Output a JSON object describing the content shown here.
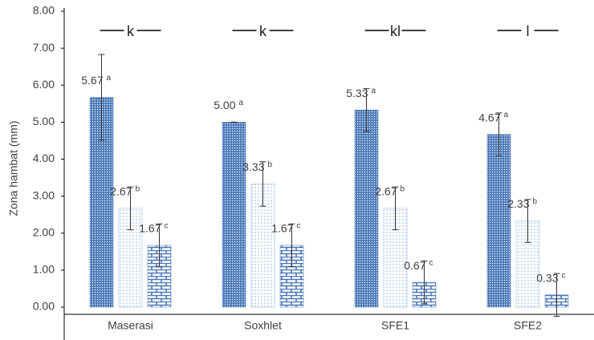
{
  "chart_data": {
    "type": "bar",
    "y_label": "Zona hambat (mm)",
    "categories": [
      "Maserasi",
      "Soxhlet",
      "SFE1",
      "SFE2"
    ],
    "series": [
      {
        "color": "#4a78b8",
        "pattern": "dots-dense",
        "values": [
          5.67,
          5.0,
          5.33,
          4.67
        ],
        "value_labels": [
          "5.67",
          "5.00",
          "5.33",
          "4.67"
        ],
        "letters": [
          "a",
          "a",
          "a",
          "a"
        ],
        "errors": [
          1.16,
          0,
          0.58,
          0.58
        ]
      },
      {
        "color": "#8fb3e0",
        "pattern": "dots-sparse",
        "values": [
          2.67,
          3.33,
          2.67,
          2.33
        ],
        "value_labels": [
          "2.67",
          "3.33",
          "2.67",
          "2.33"
        ],
        "letters": [
          "b",
          "b",
          "b",
          "b"
        ],
        "errors": [
          0.58,
          0.6,
          0.58,
          0.58
        ]
      },
      {
        "color": "#4a78b8",
        "pattern": "bricks",
        "values": [
          1.67,
          1.67,
          0.67,
          0.33
        ],
        "value_labels": [
          "1.67",
          "1.67",
          "0.67",
          "0.33"
        ],
        "letters": [
          "c",
          "c",
          "c",
          "c"
        ],
        "errors": [
          0.58,
          0.58,
          0.58,
          0.58
        ]
      }
    ],
    "group_letters": [
      "k",
      "k",
      "kl",
      "l"
    ],
    "ylim": [
      0,
      8
    ],
    "yticks": [
      {
        "value": 0,
        "label": "0.00"
      },
      {
        "value": 1,
        "label": "1.00"
      },
      {
        "value": 2,
        "label": "2.00"
      },
      {
        "value": 3,
        "label": "3.00"
      },
      {
        "value": 4,
        "label": "4.00"
      },
      {
        "value": 5,
        "label": "5.00"
      },
      {
        "value": 6,
        "label": "6.00"
      },
      {
        "value": 7,
        "label": "7.00"
      },
      {
        "value": 8,
        "label": "8.00"
      }
    ]
  }
}
